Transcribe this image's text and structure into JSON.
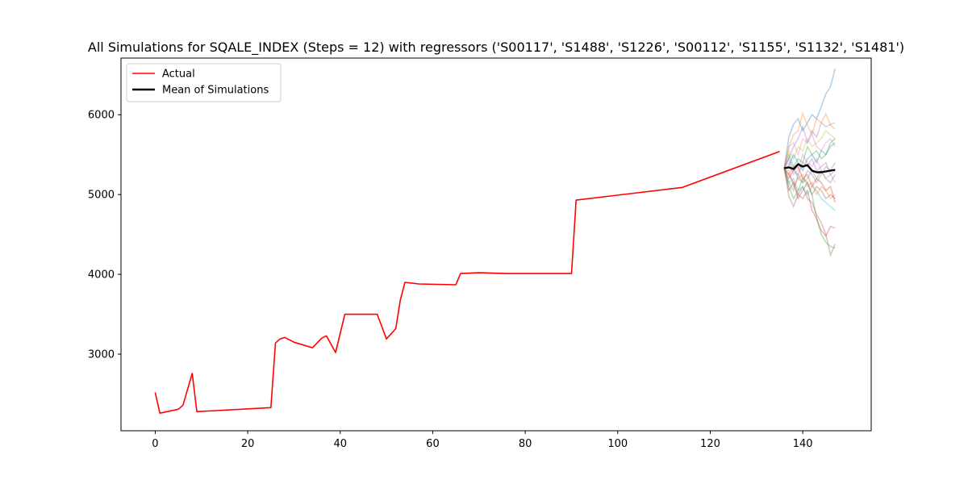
{
  "chart_data": {
    "type": "line",
    "title": "All Simulations for SQALE_INDEX (Steps = 12) with regressors ('S00117', 'S1488', 'S1226', 'S00112', 'S1155', 'S1132', 'S1481')",
    "xlabel": "",
    "ylabel": "",
    "xlim": [
      -7.4,
      154.8
    ],
    "ylim": [
      2040,
      6710
    ],
    "xticks": [
      0,
      20,
      40,
      60,
      80,
      100,
      120,
      140
    ],
    "yticks": [
      3000,
      4000,
      5000,
      6000
    ],
    "grid": false,
    "legend": {
      "placement": "top-left",
      "entries": [
        "Actual",
        "Mean of Simulations"
      ]
    },
    "colors": {
      "actual": "#ff0000",
      "mean": "#000000"
    },
    "simulation_colors": [
      "#1f77b4",
      "#ff7f0e",
      "#2ca02c",
      "#d62728",
      "#9467bd",
      "#8c564b",
      "#e377c2",
      "#7f7f7f",
      "#bcbd22",
      "#17becf"
    ],
    "series": [
      {
        "name": "Actual",
        "x": [
          0,
          1,
          5,
          6,
          8,
          9,
          25,
          26,
          27,
          28,
          30,
          34,
          36,
          37,
          39,
          41,
          48,
          50,
          52,
          53,
          54,
          57,
          65,
          66,
          70,
          76,
          90,
          91,
          114,
          135
        ],
        "y": [
          2520,
          2260,
          2310,
          2360,
          2760,
          2280,
          2330,
          3140,
          3190,
          3210,
          3150,
          3080,
          3200,
          3230,
          3020,
          3500,
          3500,
          3190,
          3320,
          3680,
          3900,
          3880,
          3870,
          4010,
          4020,
          4010,
          4010,
          4930,
          5090,
          5540
        ]
      },
      {
        "name": "Mean of Simulations",
        "x": [
          136,
          137,
          138,
          139,
          140,
          141,
          142,
          143,
          144,
          145,
          146,
          147
        ],
        "y": [
          5330,
          5340,
          5320,
          5380,
          5350,
          5370,
          5300,
          5280,
          5280,
          5290,
          5300,
          5310
        ]
      }
    ],
    "simulations": {
      "x": [
        136,
        137,
        138,
        139,
        140,
        141,
        142,
        143,
        144,
        145,
        146,
        147
      ],
      "runs": [
        [
          5330,
          5720,
          5880,
          5950,
          5800,
          5900,
          6000,
          5950,
          6100,
          6260,
          6350,
          6580
        ],
        [
          5330,
          5600,
          5750,
          5800,
          6020,
          5870,
          5750,
          5950,
          5900,
          6010,
          5870,
          5820
        ],
        [
          5330,
          5100,
          4950,
          5050,
          5200,
          5150,
          5000,
          4700,
          4500,
          4400,
          4350,
          4330
        ],
        [
          5330,
          5250,
          5150,
          5000,
          4950,
          5050,
          4800,
          4700,
          4550,
          4480,
          4600,
          4580
        ],
        [
          5330,
          5450,
          5600,
          5700,
          5850,
          5650,
          5800,
          5720,
          5900,
          5850,
          5880,
          5900
        ],
        [
          5330,
          4980,
          4850,
          5000,
          5100,
          4950,
          4900,
          4750,
          4650,
          4500,
          4240,
          4380
        ],
        [
          5330,
          5400,
          5250,
          5300,
          5500,
          5400,
          5350,
          5450,
          5300,
          5200,
          5250,
          5150
        ],
        [
          5330,
          5250,
          5350,
          5200,
          5150,
          5300,
          5250,
          5150,
          5250,
          5350,
          5300,
          5400
        ],
        [
          5330,
          5550,
          5450,
          5600,
          5550,
          5700,
          5600,
          5650,
          5700,
          5800,
          5750,
          5700
        ],
        [
          5330,
          5150,
          5200,
          5050,
          5100,
          5000,
          5100,
          5050,
          4950,
          4900,
          4850,
          4800
        ],
        [
          5330,
          5350,
          5500,
          5400,
          5300,
          5450,
          5500,
          5400,
          5550,
          5500,
          5600,
          5650
        ],
        [
          5330,
          5300,
          5100,
          5200,
          5250,
          5100,
          5150,
          5000,
          5100,
          5050,
          4950,
          5000
        ],
        [
          5330,
          5500,
          5350,
          5450,
          5400,
          5600,
          5500,
          5550,
          5450,
          5500,
          5650,
          5700
        ],
        [
          5330,
          5200,
          5300,
          5350,
          5200,
          5250,
          5100,
          5200,
          5150,
          5050,
          5100,
          4900
        ],
        [
          5330,
          5450,
          5300,
          5250,
          5400,
          5350,
          5450,
          5300,
          5350,
          5400,
          5250,
          5300
        ],
        [
          5330,
          5050,
          5150,
          4950,
          5050,
          5150,
          5000,
          5100,
          5050,
          4950,
          5000,
          4950
        ],
        [
          5330,
          5600,
          5650,
          5500,
          5700,
          5650,
          5750,
          5600,
          5550,
          5650,
          5700,
          5600
        ],
        [
          5330,
          5150,
          5050,
          5250,
          5150,
          5200,
          5300,
          5200,
          5300,
          5200,
          5150,
          5250
        ]
      ]
    }
  }
}
